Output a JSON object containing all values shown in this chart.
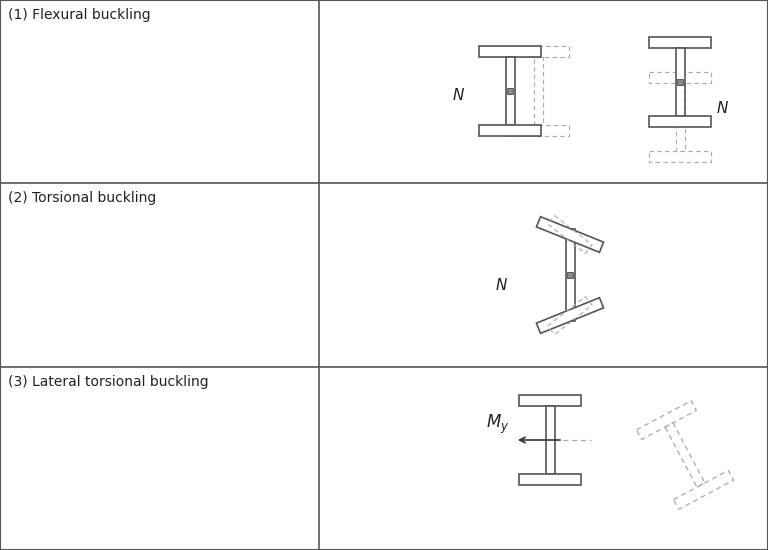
{
  "bg_color": "#ffffff",
  "border_color": "#555555",
  "col_split": 0.415,
  "row_splits": [
    0.0,
    0.333,
    0.667,
    1.0
  ],
  "row_labels": [
    "(1) Flexural buckling",
    "(2) Torsional buckling",
    "(3) Lateral torsional buckling"
  ],
  "label_fontsize": 10,
  "sym_fontsize": 11,
  "figsize": [
    7.68,
    5.5
  ],
  "dpi": 100
}
